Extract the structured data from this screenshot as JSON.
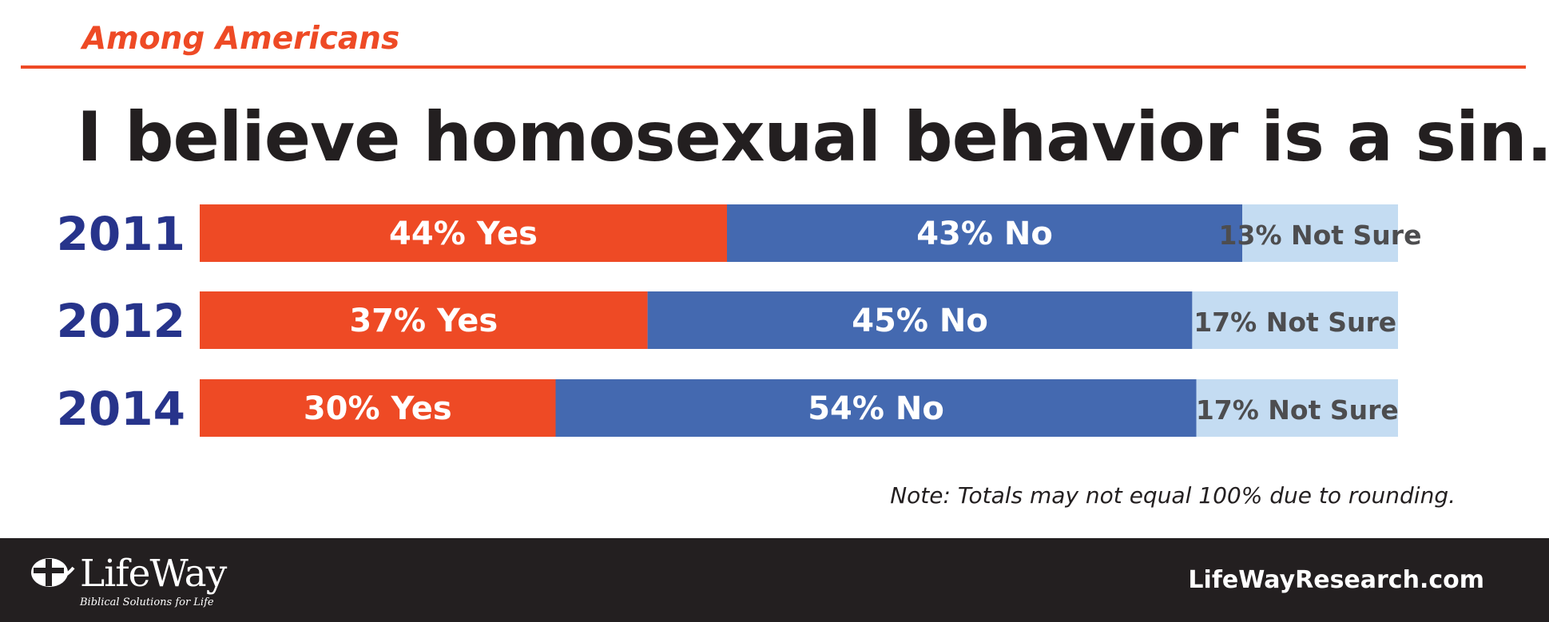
{
  "header": {
    "subtitle": "Among Americans",
    "title": "I believe homosexual behavior is a sin."
  },
  "chart_data": {
    "type": "bar",
    "orientation": "horizontal-stacked",
    "categories": [
      "2011",
      "2012",
      "2014"
    ],
    "series": [
      {
        "name": "Yes",
        "values": [
          44,
          37,
          30
        ],
        "labels": [
          "44% Yes",
          "37% Yes",
          "30% Yes"
        ],
        "color": "#ee4a25",
        "label_color": "#ffffff"
      },
      {
        "name": "No",
        "values": [
          43,
          45,
          54
        ],
        "labels": [
          "43% No",
          "45% No",
          "54% No"
        ],
        "color": "#4469b0",
        "label_color": "#ffffff"
      },
      {
        "name": "Not Sure",
        "values": [
          13,
          17,
          17
        ],
        "labels": [
          "13% Not Sure",
          "17% Not Sure",
          "17% Not Sure"
        ],
        "color": "#c4dcf2",
        "label_color": "#4d4d4f"
      }
    ],
    "category_color": "#27348b",
    "xlim": [
      0,
      100
    ],
    "grid": false,
    "legend": "none"
  },
  "note": "Note: Totals may not equal 100% due to rounding.",
  "footer": {
    "logo_name": "LifeWay",
    "logo_tagline": "Biblical Solutions for Life",
    "logo_icon": "lifeway-cross-icon",
    "website": "LifeWayResearch.com"
  }
}
